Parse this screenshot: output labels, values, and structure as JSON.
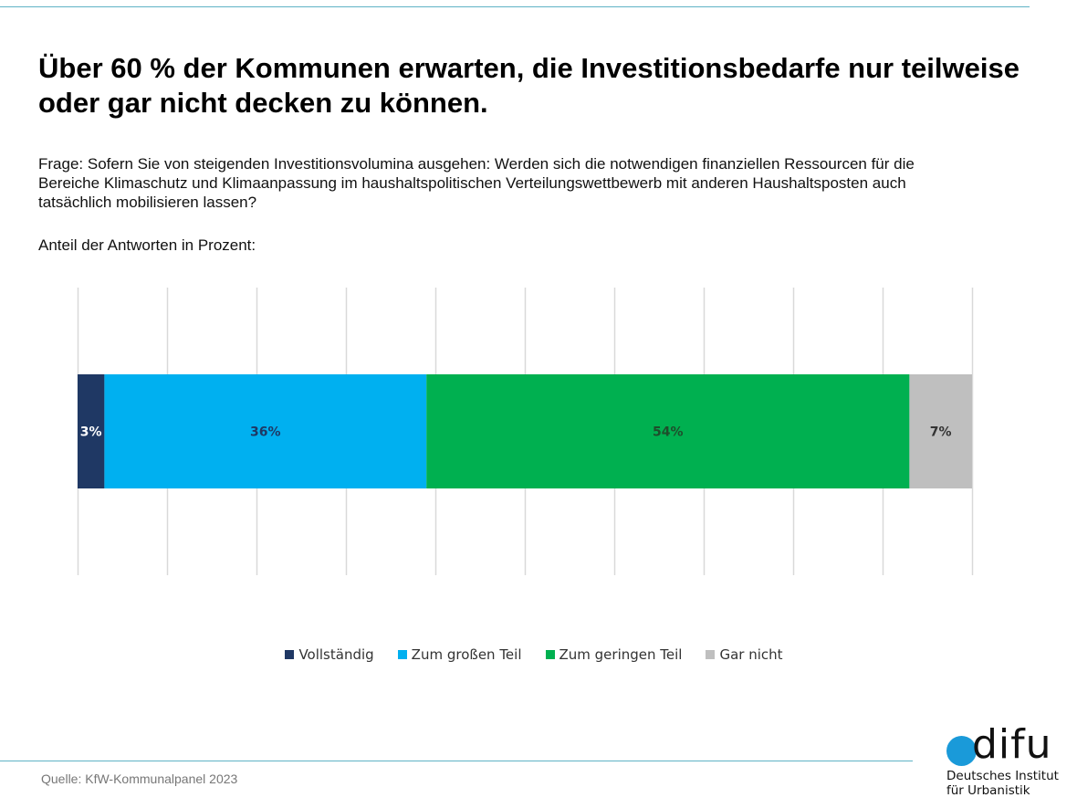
{
  "header": {
    "title": "Über 60 % der Kommunen erwarten, die Investitionsbedarfe nur teilweise oder gar nicht decken zu können.",
    "question": "Frage: Sofern Sie von steigenden Investitionsvolumina ausgehen: Werden sich die notwendigen finanziellen Ressourcen für die Bereiche Klimaschutz und Klimaanpassung im haushaltspolitischen Verteilungswettbewerb mit anderen Haushaltsposten auch tatsächlich mobilisieren lassen?",
    "unit_note": "Anteil der Antworten in Prozent:"
  },
  "chart_data": {
    "type": "bar",
    "orientation": "horizontal",
    "stacked": true,
    "title": "",
    "xlabel": "",
    "ylabel": "",
    "xlim": [
      0,
      100
    ],
    "grid": true,
    "gridlines_at": [
      0,
      10,
      20,
      30,
      40,
      50,
      60,
      70,
      80,
      90,
      100
    ],
    "axis_tick_labels_visible": false,
    "categories": [
      ""
    ],
    "legend_position": "bottom",
    "series": [
      {
        "name": "Vollständig",
        "values": [
          3
        ],
        "label": "3%",
        "color": "#1f3864",
        "label_color": "#ffffff"
      },
      {
        "name": "Zum großen Teil",
        "values": [
          36
        ],
        "label": "36%",
        "color": "#00b0f0",
        "label_color": "#1f3864"
      },
      {
        "name": "Zum geringen Teil",
        "values": [
          54
        ],
        "label": "54%",
        "color": "#00b050",
        "label_color": "#1e4d2b"
      },
      {
        "name": "Gar nicht",
        "values": [
          7
        ],
        "label": "7%",
        "color": "#bfbfbf",
        "label_color": "#333333"
      }
    ]
  },
  "footer": {
    "source": "Quelle: KfW-Kommunalpanel 2023"
  },
  "logo": {
    "wordmark": "difu",
    "name_line1": "Deutsches Institut",
    "name_line2": "für Urbanistik",
    "accent_color": "#1a9ad9"
  }
}
